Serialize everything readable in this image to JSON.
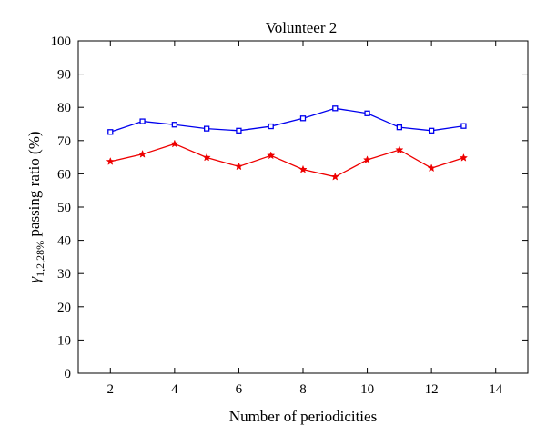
{
  "chart_data": {
    "type": "line",
    "title": "Volunteer 2",
    "xlabel": "Number of periodicities",
    "ylabel": {
      "main": "γ",
      "subscript": "1,2,28%",
      "rest": " passing ratio (%)"
    },
    "xlim": [
      1,
      15
    ],
    "ylim": [
      0,
      100
    ],
    "xticks": [
      2,
      4,
      6,
      8,
      10,
      12,
      14
    ],
    "yticks": [
      0,
      10,
      20,
      30,
      40,
      50,
      60,
      70,
      80,
      90,
      100
    ],
    "grid": false,
    "legend": "none",
    "x": [
      2,
      3,
      4,
      5,
      6,
      7,
      8,
      9,
      10,
      11,
      12,
      13
    ],
    "series": [
      {
        "color": "#0000ee",
        "marker": "square",
        "values": [
          72.6,
          75.8,
          74.8,
          73.6,
          73.0,
          74.3,
          76.7,
          79.7,
          78.2,
          74.0,
          73.0,
          74.4
        ]
      },
      {
        "color": "#ee0000",
        "marker": "star",
        "values": [
          63.7,
          65.9,
          69.0,
          64.9,
          62.2,
          65.5,
          61.3,
          59.1,
          64.2,
          67.2,
          61.7,
          64.8
        ]
      }
    ]
  }
}
